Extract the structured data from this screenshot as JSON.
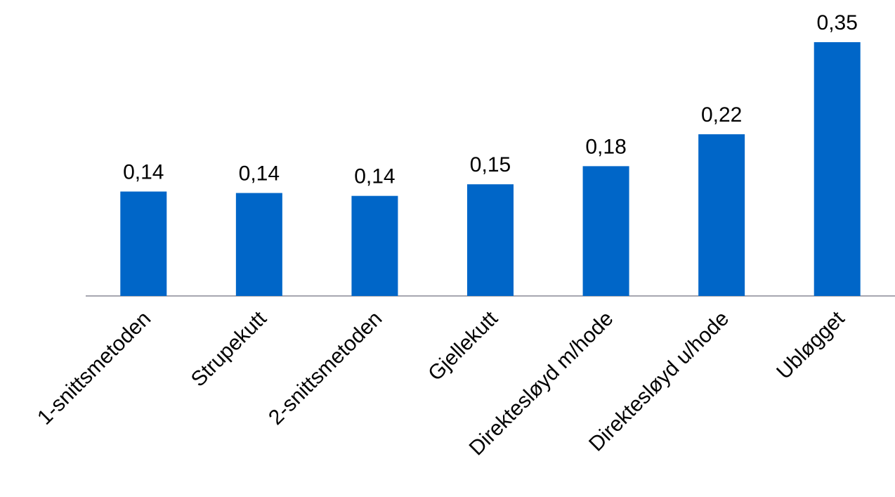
{
  "chart_data": {
    "type": "bar",
    "categories": [
      "1-snittsmetoden",
      "Strupekutt",
      "2-snittsmetoden",
      "Gjellekutt",
      "Direktesløyd m/hode",
      "Direktesløyd u/hode",
      "Ubløgget"
    ],
    "values": [
      0.144,
      0.142,
      0.138,
      0.154,
      0.179,
      0.223,
      0.35
    ],
    "value_labels": [
      "0,14",
      "0,14",
      "0,14",
      "0,15",
      "0,18",
      "0,22",
      "0,35"
    ],
    "color": "#0066c8"
  }
}
